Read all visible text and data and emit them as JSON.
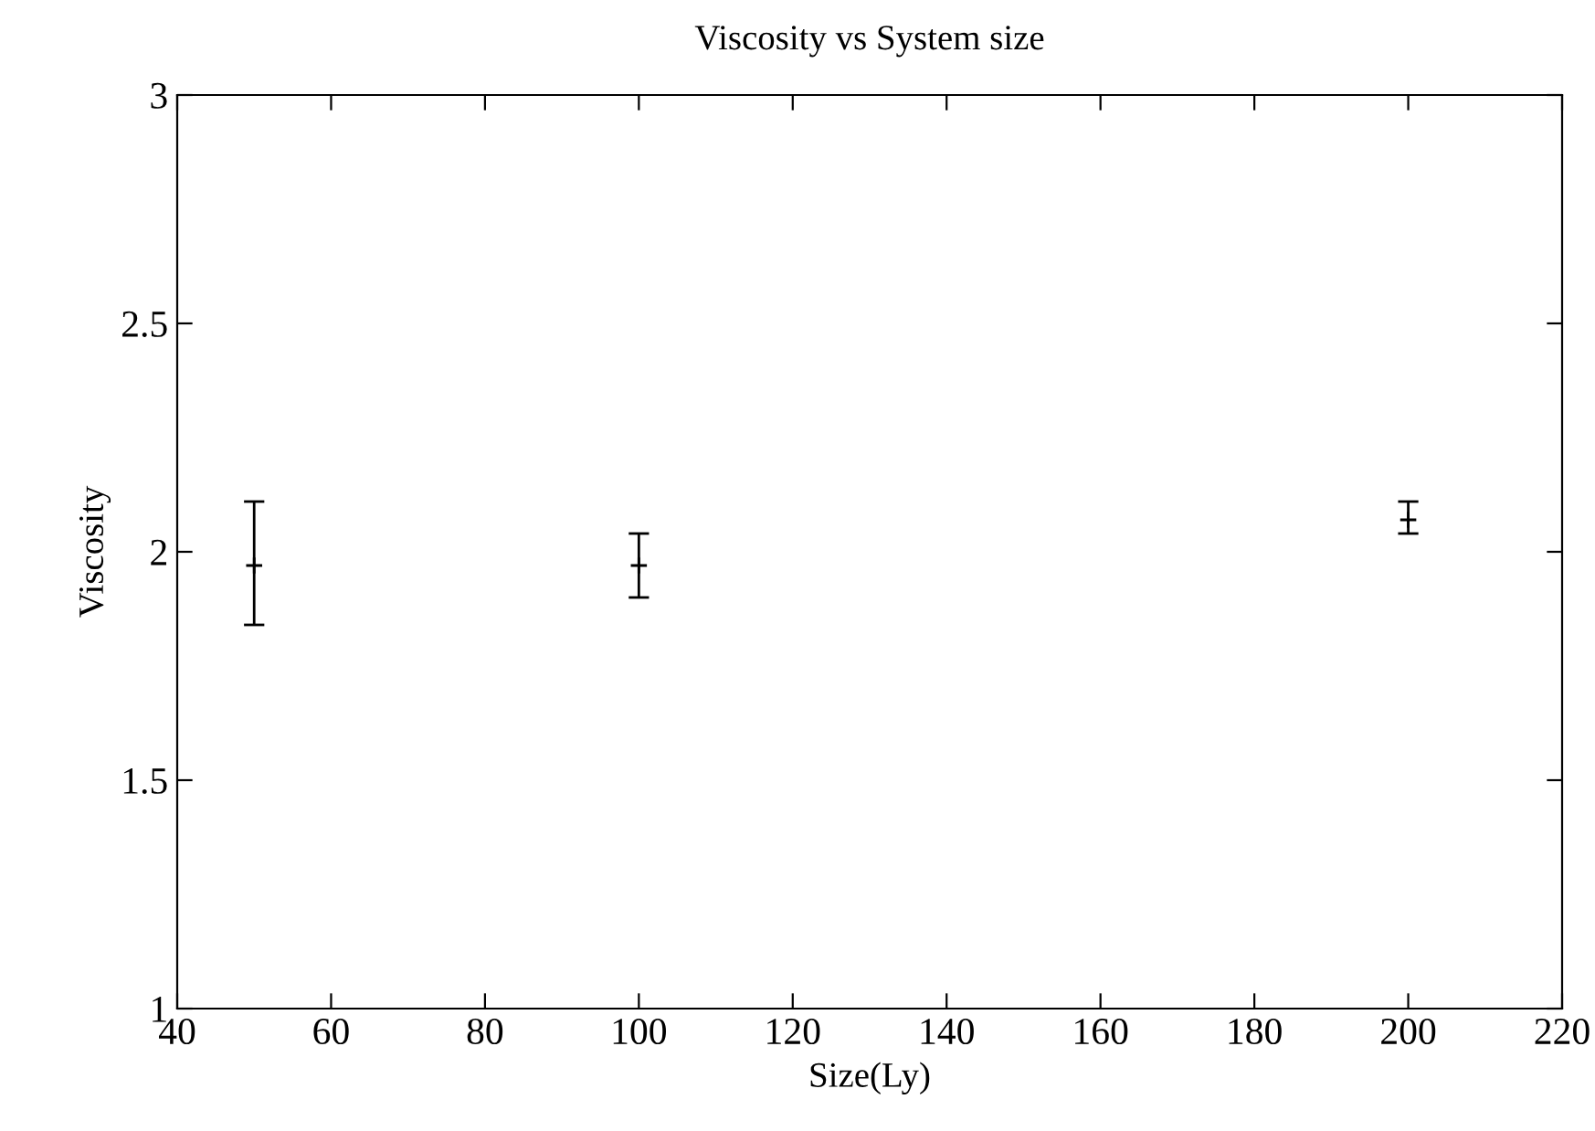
{
  "chart_data": {
    "type": "scatter",
    "title": "Viscosity vs System size",
    "xlabel": "Size(Ly)",
    "ylabel": "Viscosity",
    "x": [
      50,
      100,
      200
    ],
    "series": [
      {
        "color": "#000000",
        "values": [
          1.97,
          1.97,
          2.07
        ],
        "errors": [
          [
            1.84,
            2.11
          ],
          [
            1.9,
            2.04
          ],
          [
            2.04,
            2.11
          ]
        ]
      }
    ],
    "marker": "cross",
    "xlim": [
      40,
      220
    ],
    "xticks": [
      40,
      60,
      80,
      100,
      120,
      140,
      160,
      180,
      200,
      220
    ],
    "ylim": [
      1,
      3
    ],
    "yticks": [
      1,
      1.5,
      2,
      2.5,
      3
    ],
    "grid": false,
    "legend": false
  }
}
